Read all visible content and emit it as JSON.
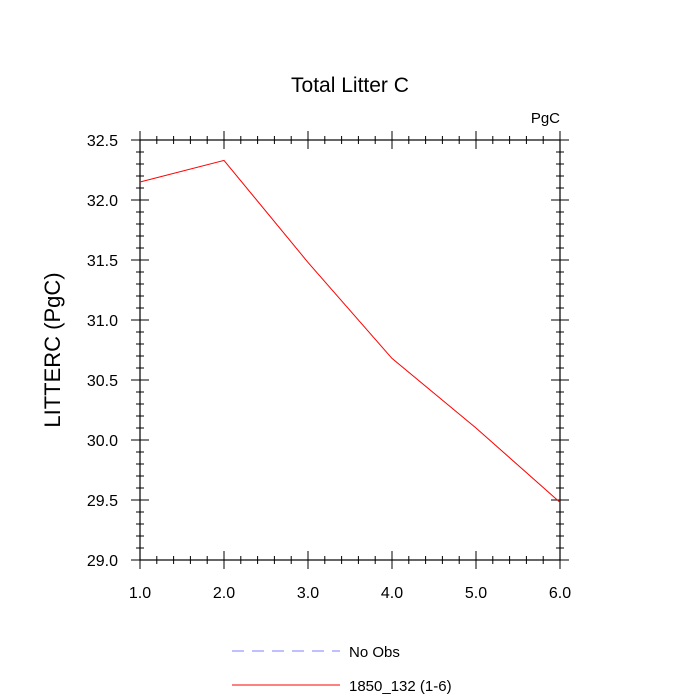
{
  "chart_data": {
    "type": "line",
    "title": "Total Litter C",
    "units_label": "PgC",
    "ylabel": "LITTERC  (PgC)",
    "xlabel": "",
    "xlim": [
      1.0,
      6.0
    ],
    "ylim": [
      29.0,
      32.5
    ],
    "x_ticks": [
      1.0,
      2.0,
      3.0,
      4.0,
      5.0,
      6.0
    ],
    "x_tick_labels": [
      "1.0",
      "2.0",
      "3.0",
      "4.0",
      "5.0",
      "6.0"
    ],
    "y_ticks": [
      29.0,
      29.5,
      30.0,
      30.5,
      31.0,
      31.5,
      32.0,
      32.5
    ],
    "y_tick_labels": [
      "29.0",
      "29.5",
      "30.0",
      "30.5",
      "31.0",
      "31.5",
      "32.0",
      "32.5"
    ],
    "grid": false,
    "series": [
      {
        "name": "1850_132 (1-6)",
        "color": "#ff0000",
        "style": "solid",
        "x": [
          1,
          2,
          3,
          4,
          5,
          6
        ],
        "values": [
          32.15,
          32.33,
          31.48,
          30.68,
          30.1,
          29.48
        ]
      }
    ],
    "legend": [
      {
        "label": "No Obs",
        "color": "#8080ff",
        "style": "dashed"
      },
      {
        "label": "1850_132 (1-6)",
        "color": "#ff0000",
        "style": "solid"
      }
    ],
    "legend_position": "bottom"
  }
}
